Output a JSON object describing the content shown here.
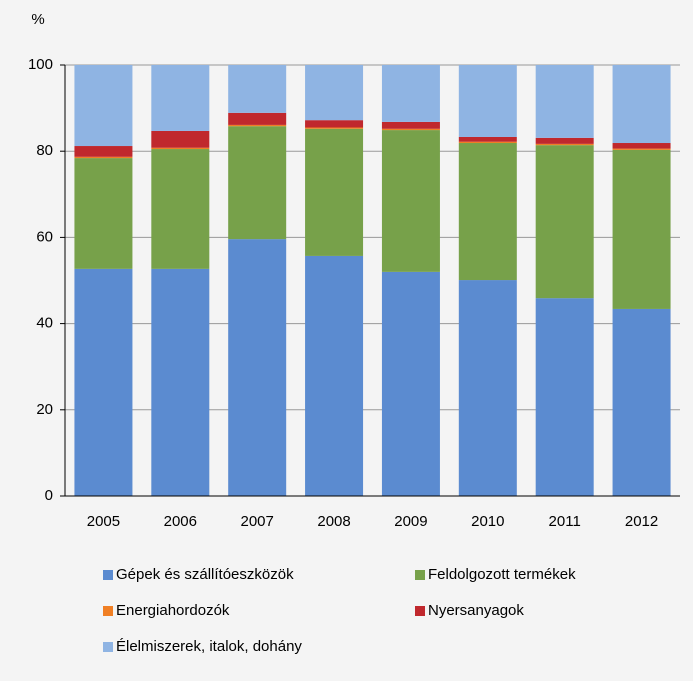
{
  "chart_data": {
    "type": "stacked_bar",
    "y_label": "%",
    "categories": [
      "2005",
      "2006",
      "2007",
      "2008",
      "2009",
      "2010",
      "2011",
      "2012"
    ],
    "series": [
      {
        "name": "Gépek és szállítóeszközök",
        "color": "#5b8bd0",
        "values": [
          52.7,
          52.7,
          59.6,
          55.7,
          52.0,
          50.1,
          45.9,
          43.4
        ]
      },
      {
        "name": "Feldolgozott termékek",
        "color": "#77a14a",
        "values": [
          25.7,
          27.8,
          26.2,
          29.5,
          32.9,
          31.8,
          35.5,
          36.9
        ]
      },
      {
        "name": "Energiahordozók",
        "color": "#f07f24",
        "values": [
          0.3,
          0.3,
          0.3,
          0.3,
          0.3,
          0.3,
          0.3,
          0.3
        ]
      },
      {
        "name": "Nyersanyagok",
        "color": "#c0282d",
        "values": [
          2.5,
          3.9,
          2.8,
          1.7,
          1.6,
          1.1,
          1.4,
          1.3
        ]
      },
      {
        "name": "Élelmiszerek, italok, dohány",
        "color": "#8fb4e3",
        "values": [
          18.8,
          15.3,
          11.1,
          12.8,
          13.2,
          16.7,
          16.9,
          18.1
        ]
      }
    ],
    "ylim": [
      0,
      100
    ],
    "yticks": [
      0,
      20,
      40,
      60,
      80,
      100
    ],
    "grid": true,
    "legend": "bottom"
  }
}
